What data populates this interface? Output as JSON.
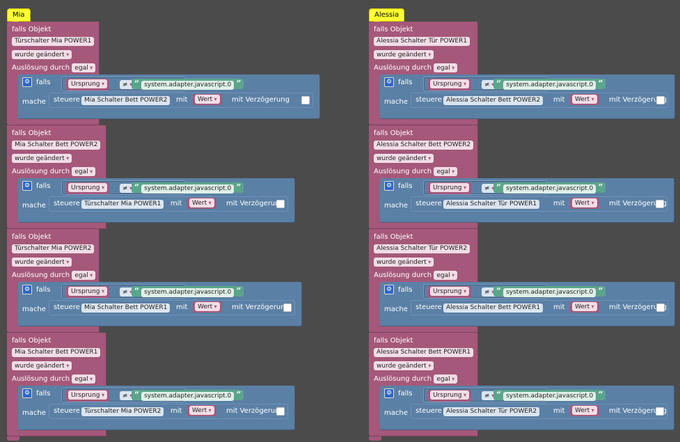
{
  "columns": [
    {
      "comment": "Mia",
      "blocks": [
        {
          "title": "falls Objekt",
          "object": "Türschalter Mia POWER1",
          "change": "wurde geändert",
          "trigger_label": "Auslösung durch",
          "trigger_value": "egal",
          "if_label": "falls",
          "do_label": "mache",
          "compare_left": "Ursprung",
          "operator": "≠",
          "compare_right": "system.adapter.javascript.0",
          "action_label": "steuere",
          "target": "Mia Schalter Bett  POWER2",
          "with_label": "mit",
          "value": "Wert",
          "delay_label": "mit Verzögerung"
        },
        {
          "title": "falls Objekt",
          "object": "Mia Schalter Bett  POWER2",
          "change": "wurde geändert",
          "trigger_label": "Auslösung durch",
          "trigger_value": "egal",
          "if_label": "falls",
          "do_label": "mache",
          "compare_left": "Ursprung",
          "operator": "≠",
          "compare_right": "system.adapter.javascript.0",
          "action_label": "steuere",
          "target": "Türschalter Mia POWER1",
          "with_label": "mit",
          "value": "Wert",
          "delay_label": "mit Verzögerung"
        },
        {
          "title": "falls Objekt",
          "object": "Türschalter Mia POWER2",
          "change": "wurde geändert",
          "trigger_label": "Auslösung durch",
          "trigger_value": "egal",
          "if_label": "falls",
          "do_label": "mache",
          "compare_left": "Ursprung",
          "operator": "≠",
          "compare_right": "system.adapter.javascript.0",
          "action_label": "steuere",
          "target": "Mia Schalter Bett  POWER1",
          "with_label": "mit",
          "value": "Wert",
          "delay_label": "mit Verzögerung"
        },
        {
          "title": "falls Objekt",
          "object": "Mia Schalter Bett  POWER1",
          "change": "wurde geändert",
          "trigger_label": "Auslösung durch",
          "trigger_value": "egal",
          "if_label": "falls",
          "do_label": "mache",
          "compare_left": "Ursprung",
          "operator": "≠",
          "compare_right": "system.adapter.javascript.0",
          "action_label": "steuere",
          "target": "Türschalter Mia POWER2",
          "with_label": "mit",
          "value": "Wert",
          "delay_label": "mit Verzögerung"
        }
      ]
    },
    {
      "comment": "Alessia",
      "blocks": [
        {
          "title": "falls Objekt",
          "object": "Alessia Schalter Tür  POWER1",
          "change": "wurde geändert",
          "trigger_label": "Auslösung durch",
          "trigger_value": "egal",
          "if_label": "falls",
          "do_label": "mache",
          "compare_left": "Ursprung",
          "operator": "≠",
          "compare_right": "system.adapter.javascript.0",
          "action_label": "steuere",
          "target": "Alessia Schalter Bett  POWER2",
          "with_label": "mit",
          "value": "Wert",
          "delay_label": "mit Verzögerung"
        },
        {
          "title": "falls Objekt",
          "object": "Alessia Schalter Bett  POWER2",
          "change": "wurde geändert",
          "trigger_label": "Auslösung durch",
          "trigger_value": "egal",
          "if_label": "falls",
          "do_label": "mache",
          "compare_left": "Ursprung",
          "operator": "≠",
          "compare_right": "system.adapter.javascript.0",
          "action_label": "steuere",
          "target": "Alessia Schalter Tür  POWER1",
          "with_label": "mit",
          "value": "Wert",
          "delay_label": "mit Verzögerung"
        },
        {
          "title": "falls Objekt",
          "object": "Alessia Schalter Tür  POWER2",
          "change": "wurde geändert",
          "trigger_label": "Auslösung durch",
          "trigger_value": "egal",
          "if_label": "falls",
          "do_label": "mache",
          "compare_left": "Ursprung",
          "operator": "≠",
          "compare_right": "system.adapter.javascript.0",
          "action_label": "steuere",
          "target": "Alessia Schalter Bett  POWER1",
          "with_label": "mit",
          "value": "Wert",
          "delay_label": "mit Verzögerung"
        },
        {
          "title": "falls Objekt",
          "object": "Alessia Schalter Bett  POWER1",
          "change": "wurde geändert",
          "trigger_label": "Auslösung durch",
          "trigger_value": "egal",
          "if_label": "falls",
          "do_label": "mache",
          "compare_left": "Ursprung",
          "operator": "≠",
          "compare_right": "system.adapter.javascript.0",
          "action_label": "steuere",
          "target": "Alessia Schalter Tür  POWER2",
          "with_label": "mit",
          "value": "Wert",
          "delay_label": "mit Verzögerung"
        }
      ]
    }
  ],
  "colors": {
    "trigger": "#a5587a",
    "logic": "#5b80a5",
    "text": "#5ba58c",
    "comment": "#feff33",
    "workspace": "#4b4b4b"
  }
}
